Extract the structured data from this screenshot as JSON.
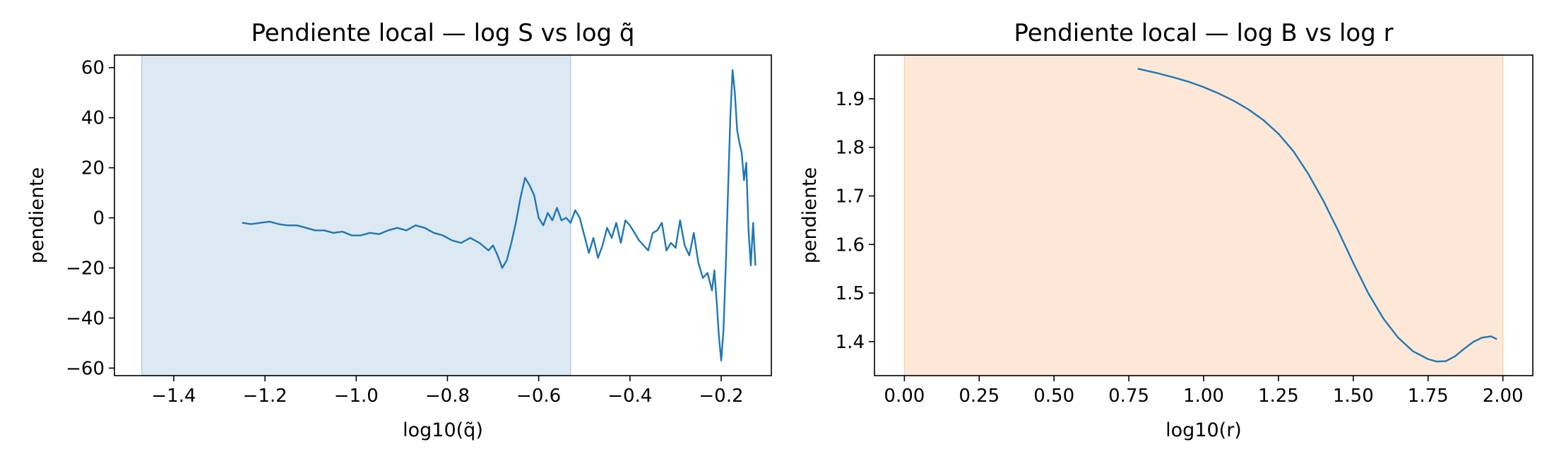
{
  "chart_data": [
    {
      "type": "line",
      "title": "Pendiente local — log S vs log q̃",
      "xlabel": "log10(q̃)",
      "ylabel": "pendiente",
      "xlim": [
        -1.53,
        -0.09
      ],
      "ylim": [
        -63,
        65
      ],
      "xticks": [
        -1.4,
        -1.2,
        -1.0,
        -0.8,
        -0.6,
        -0.4,
        -0.2
      ],
      "xtick_labels": [
        "−1.4",
        "−1.2",
        "−1.0",
        "−0.8",
        "−0.6",
        "−0.4",
        "−0.2"
      ],
      "yticks": [
        -60,
        -40,
        -20,
        0,
        20,
        40,
        60
      ],
      "ytick_labels": [
        "−60",
        "−40",
        "−20",
        "0",
        "20",
        "40",
        "60"
      ],
      "grid": false,
      "shaded_region": {
        "x": [
          -1.47,
          -0.53
        ],
        "color": "#dce9f3",
        "edge": "#b6cfe4"
      },
      "line_color": "#1f77b4",
      "series": [
        {
          "x": [
            -1.25,
            -1.23,
            -1.21,
            -1.19,
            -1.17,
            -1.15,
            -1.13,
            -1.11,
            -1.09,
            -1.07,
            -1.05,
            -1.03,
            -1.01,
            -0.99,
            -0.97,
            -0.95,
            -0.93,
            -0.91,
            -0.89,
            -0.87,
            -0.85,
            -0.83,
            -0.81,
            -0.79,
            -0.77,
            -0.75,
            -0.73,
            -0.71,
            -0.7,
            -0.69,
            -0.68,
            -0.67,
            -0.66,
            -0.65,
            -0.64,
            -0.63,
            -0.62,
            -0.61,
            -0.6,
            -0.59,
            -0.58,
            -0.57,
            -0.56,
            -0.55,
            -0.54,
            -0.53,
            -0.52,
            -0.51,
            -0.5,
            -0.49,
            -0.48,
            -0.47,
            -0.46,
            -0.45,
            -0.44,
            -0.43,
            -0.42,
            -0.41,
            -0.4,
            -0.39,
            -0.38,
            -0.37,
            -0.36,
            -0.35,
            -0.34,
            -0.33,
            -0.32,
            -0.31,
            -0.3,
            -0.29,
            -0.28,
            -0.27,
            -0.26,
            -0.25,
            -0.24,
            -0.23,
            -0.22,
            -0.215,
            -0.21,
            -0.205,
            -0.2,
            -0.195,
            -0.19,
            -0.185,
            -0.18,
            -0.175,
            -0.17,
            -0.165,
            -0.16,
            -0.155,
            -0.15,
            -0.145,
            -0.14,
            -0.135,
            -0.13,
            -0.125
          ],
          "y": [
            -2,
            -2.5,
            -2,
            -1.5,
            -2.5,
            -3,
            -3,
            -4,
            -5,
            -5,
            -6,
            -5.5,
            -7,
            -7,
            -6,
            -6.5,
            -5,
            -4,
            -5,
            -3,
            -4,
            -6,
            -7,
            -9,
            -10,
            -8,
            -10,
            -13,
            -11,
            -15,
            -20,
            -17,
            -10,
            -2,
            8,
            16,
            13,
            9,
            0,
            -3,
            2,
            -1,
            4,
            -1,
            0,
            -2,
            3,
            0,
            -7,
            -14,
            -8,
            -16,
            -11,
            -4,
            -8,
            -2,
            -10,
            -1,
            -3,
            -6,
            -9,
            -11,
            -13,
            -6,
            -5,
            -2,
            -13,
            -10,
            -12,
            -1,
            -11,
            -15,
            -6,
            -18,
            -24,
            -22,
            -29,
            -21,
            -33,
            -47,
            -57,
            -45,
            -20,
            10,
            40,
            59,
            50,
            35,
            30,
            26,
            15,
            22,
            -5,
            -19,
            -2,
            -19
          ]
        }
      ]
    },
    {
      "type": "line",
      "title": "Pendiente local — log B vs log r",
      "xlabel": "log10(r)",
      "ylabel": "pendiente",
      "xlim": [
        -0.1,
        2.1
      ],
      "ylim": [
        1.33,
        1.99
      ],
      "xticks": [
        0.0,
        0.25,
        0.5,
        0.75,
        1.0,
        1.25,
        1.5,
        1.75,
        2.0
      ],
      "xtick_labels": [
        "0.00",
        "0.25",
        "0.50",
        "0.75",
        "1.00",
        "1.25",
        "1.50",
        "1.75",
        "2.00"
      ],
      "yticks": [
        1.4,
        1.5,
        1.6,
        1.7,
        1.8,
        1.9
      ],
      "ytick_labels": [
        "1.4",
        "1.5",
        "1.6",
        "1.7",
        "1.8",
        "1.9"
      ],
      "grid": false,
      "shaded_region": {
        "x": [
          0.0,
          2.0
        ],
        "color": "#fde8d7",
        "edge": "#f9d2b0"
      },
      "line_color": "#1f77b4",
      "series": [
        {
          "x": [
            0.78,
            0.85,
            0.9,
            0.95,
            1.0,
            1.05,
            1.1,
            1.15,
            1.2,
            1.25,
            1.3,
            1.35,
            1.4,
            1.45,
            1.5,
            1.55,
            1.6,
            1.65,
            1.7,
            1.75,
            1.78,
            1.81,
            1.84,
            1.87,
            1.9,
            1.93,
            1.96,
            1.98
          ],
          "y": [
            1.962,
            1.952,
            1.944,
            1.935,
            1.924,
            1.911,
            1.896,
            1.878,
            1.856,
            1.828,
            1.792,
            1.745,
            1.69,
            1.628,
            1.562,
            1.5,
            1.448,
            1.408,
            1.38,
            1.364,
            1.359,
            1.36,
            1.37,
            1.385,
            1.399,
            1.408,
            1.411,
            1.405
          ]
        }
      ]
    }
  ]
}
